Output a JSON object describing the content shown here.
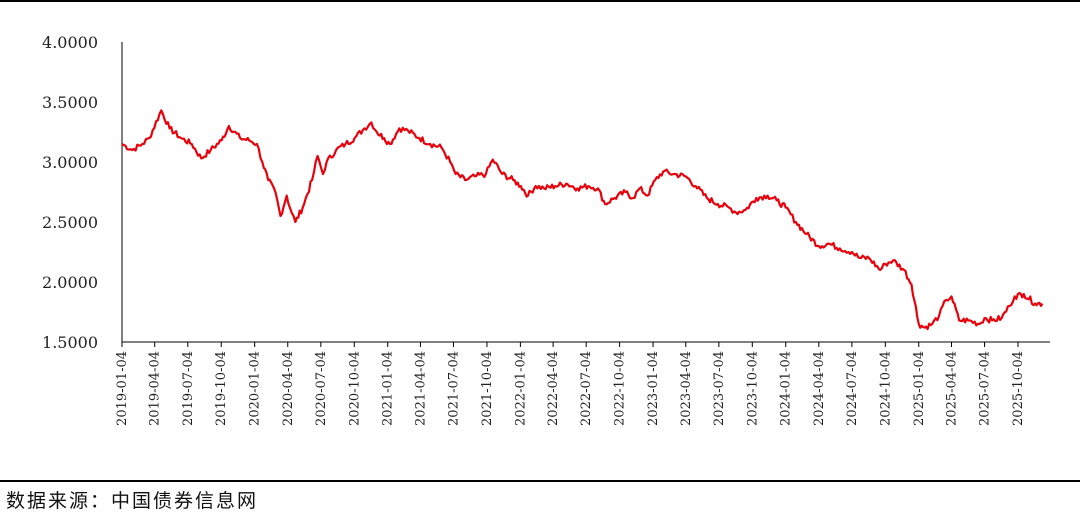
{
  "source_note": "数据来源：中国债券信息网",
  "chart_data": {
    "type": "line",
    "title": "",
    "xlabel": "",
    "ylabel": "",
    "ylim": [
      1.5,
      4.0
    ],
    "y_ticks": [
      "4.0000",
      "3.5000",
      "3.0000",
      "2.5000",
      "2.0000",
      "1.5000"
    ],
    "x_ticks": [
      "2019-01-04",
      "2019-04-04",
      "2019-07-04",
      "2019-10-04",
      "2020-01-04",
      "2020-04-04",
      "2020-07-04",
      "2020-10-04",
      "2021-01-04",
      "2021-04-04",
      "2021-07-04",
      "2021-10-04",
      "2022-01-04",
      "2022-04-04",
      "2022-07-04",
      "2022-10-04",
      "2023-01-04",
      "2023-04-04",
      "2023-07-04",
      "2023-10-04",
      "2024-01-04",
      "2024-04-04",
      "2024-07-04",
      "2024-10-04",
      "2025-01-04",
      "2025-04-04",
      "2025-07-04",
      "2025-10-04"
    ],
    "grid": false,
    "legend": "none",
    "line_color": "#e8000b",
    "series": [
      {
        "name": "",
        "x": [
          "2019-01-04",
          "2019-02-01",
          "2019-03-01",
          "2019-03-20",
          "2019-04-22",
          "2019-05-15",
          "2019-06-15",
          "2019-07-15",
          "2019-08-10",
          "2019-09-05",
          "2019-10-05",
          "2019-10-25",
          "2019-11-25",
          "2019-12-20",
          "2020-01-10",
          "2020-01-25",
          "2020-02-10",
          "2020-03-01",
          "2020-03-15",
          "2020-04-01",
          "2020-04-10",
          "2020-04-25",
          "2020-05-15",
          "2020-06-10",
          "2020-06-25",
          "2020-07-10",
          "2020-07-20",
          "2020-08-15",
          "2020-09-10",
          "2020-10-05",
          "2020-11-01",
          "2020-11-20",
          "2020-12-05",
          "2020-12-25",
          "2021-01-10",
          "2021-02-05",
          "2021-03-01",
          "2021-04-01",
          "2021-05-01",
          "2021-06-01",
          "2021-06-25",
          "2021-07-10",
          "2021-08-05",
          "2021-09-01",
          "2021-10-01",
          "2021-10-20",
          "2021-11-15",
          "2021-12-15",
          "2022-01-05",
          "2022-01-25",
          "2022-02-15",
          "2022-03-10",
          "2022-04-10",
          "2022-05-10",
          "2022-06-10",
          "2022-07-10",
          "2022-08-05",
          "2022-08-25",
          "2022-09-20",
          "2022-10-20",
          "2022-11-10",
          "2022-11-28",
          "2022-12-20",
          "2023-01-10",
          "2023-02-01",
          "2023-03-01",
          "2023-04-04",
          "2023-05-01",
          "2023-06-01",
          "2023-07-01",
          "2023-08-01",
          "2023-08-20",
          "2023-09-15",
          "2023-10-15",
          "2023-11-15",
          "2023-12-10",
          "2024-01-04",
          "2024-02-01",
          "2024-03-01",
          "2024-04-04",
          "2024-05-01",
          "2024-06-01",
          "2024-07-04",
          "2024-07-25",
          "2024-08-20",
          "2024-09-20",
          "2024-10-04",
          "2024-10-25",
          "2024-11-25",
          "2024-12-15",
          "2025-01-04",
          "2025-01-20",
          "2025-02-10",
          "2025-03-01",
          "2025-03-20",
          "2025-04-04",
          "2025-04-25",
          "2025-05-20",
          "2025-06-20",
          "2025-07-04",
          "2025-07-25",
          "2025-08-20",
          "2025-09-10",
          "2025-09-25",
          "2025-10-20",
          "2025-11-20",
          "2025-12-10"
        ],
        "y": [
          3.15,
          3.1,
          3.15,
          3.2,
          3.43,
          3.28,
          3.2,
          3.15,
          3.03,
          3.1,
          3.18,
          3.3,
          3.2,
          3.18,
          3.15,
          3.0,
          2.85,
          2.75,
          2.55,
          2.72,
          2.62,
          2.5,
          2.62,
          2.85,
          3.05,
          2.9,
          3.0,
          3.1,
          3.15,
          3.2,
          3.28,
          3.33,
          3.25,
          3.2,
          3.15,
          3.28,
          3.26,
          3.2,
          3.15,
          3.12,
          3.0,
          2.9,
          2.85,
          2.88,
          2.9,
          3.02,
          2.9,
          2.85,
          2.8,
          2.72,
          2.8,
          2.78,
          2.8,
          2.82,
          2.78,
          2.8,
          2.78,
          2.65,
          2.7,
          2.75,
          2.7,
          2.78,
          2.72,
          2.85,
          2.92,
          2.9,
          2.88,
          2.8,
          2.7,
          2.65,
          2.62,
          2.58,
          2.6,
          2.7,
          2.72,
          2.68,
          2.62,
          2.5,
          2.4,
          2.3,
          2.32,
          2.28,
          2.25,
          2.2,
          2.2,
          2.1,
          2.15,
          2.18,
          2.1,
          1.98,
          1.65,
          1.62,
          1.65,
          1.72,
          1.85,
          1.88,
          1.68,
          1.68,
          1.65,
          1.7,
          1.68,
          1.7,
          1.8,
          1.88,
          1.9,
          1.82,
          1.82
        ]
      }
    ]
  }
}
